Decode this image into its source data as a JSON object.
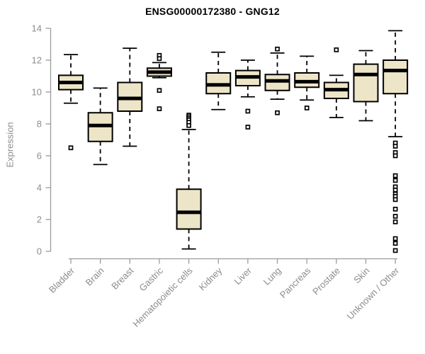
{
  "colors": {
    "box_fill": "#EDE5C7",
    "box_stroke": "#000000",
    "median": "#000000",
    "axis_line": "#9B9B9B",
    "axis_text": "#8C8C8C",
    "title_text": "#000000",
    "outlier_fill": "#FFFFFF",
    "background": "#FFFFFF"
  },
  "chart_data": {
    "type": "boxplot",
    "title": "ENSG00000172380 - GNG12",
    "xlabel": "",
    "ylabel": "Expression",
    "ylim": [
      0,
      14
    ],
    "yticks": [
      0,
      2,
      4,
      6,
      8,
      10,
      12,
      14
    ],
    "grid": false,
    "legend": false,
    "categories": [
      "Bladder",
      "Brain",
      "Breast",
      "Gastric",
      "Hematopoietic cells",
      "Kidney",
      "Liver",
      "Lung",
      "Pancreas",
      "Prostate",
      "Skin",
      "Unknown / Other"
    ],
    "series": [
      {
        "name": "Bladder",
        "whisker_low": 9.3,
        "q1": 10.15,
        "median": 10.6,
        "q3": 11.05,
        "whisker_high": 12.35,
        "outliers": [
          6.5
        ]
      },
      {
        "name": "Brain",
        "whisker_low": 5.45,
        "q1": 6.9,
        "median": 7.9,
        "q3": 8.7,
        "whisker_high": 10.25,
        "outliers": []
      },
      {
        "name": "Breast",
        "whisker_low": 6.6,
        "q1": 8.8,
        "median": 9.6,
        "q3": 10.6,
        "whisker_high": 12.75,
        "outliers": []
      },
      {
        "name": "Gastric",
        "whisker_low": 10.9,
        "q1": 11.0,
        "median": 11.25,
        "q3": 11.5,
        "whisker_high": 11.85,
        "outliers": [
          12.3,
          12.1,
          10.1,
          8.95
        ]
      },
      {
        "name": "Hematopoietic cells",
        "whisker_low": 0.15,
        "q1": 1.4,
        "median": 2.45,
        "q3": 3.9,
        "whisker_high": 7.65,
        "outliers": [
          8.55,
          8.45,
          8.35,
          8.25,
          8.1,
          7.9
        ]
      },
      {
        "name": "Kidney",
        "whisker_low": 8.9,
        "q1": 9.9,
        "median": 10.45,
        "q3": 11.2,
        "whisker_high": 12.5,
        "outliers": []
      },
      {
        "name": "Liver",
        "whisker_low": 9.7,
        "q1": 10.4,
        "median": 10.95,
        "q3": 11.35,
        "whisker_high": 12.0,
        "outliers": [
          8.8,
          7.8
        ]
      },
      {
        "name": "Lung",
        "whisker_low": 9.55,
        "q1": 10.1,
        "median": 10.7,
        "q3": 11.1,
        "whisker_high": 12.45,
        "outliers": [
          12.7,
          8.7
        ]
      },
      {
        "name": "Pancreas",
        "whisker_low": 9.5,
        "q1": 10.3,
        "median": 10.65,
        "q3": 11.2,
        "whisker_high": 12.25,
        "outliers": [
          9.0
        ]
      },
      {
        "name": "Prostate",
        "whisker_low": 8.4,
        "q1": 9.6,
        "median": 10.15,
        "q3": 10.6,
        "whisker_high": 11.05,
        "outliers": [
          12.65
        ]
      },
      {
        "name": "Skin",
        "whisker_low": 8.2,
        "q1": 9.4,
        "median": 11.1,
        "q3": 11.75,
        "whisker_high": 12.6,
        "outliers": []
      },
      {
        "name": "Unknown / Other",
        "whisker_low": 7.2,
        "q1": 9.9,
        "median": 11.35,
        "q3": 12.0,
        "whisker_high": 13.85,
        "outliers": [
          6.8,
          6.6,
          6.2,
          6.0,
          4.75,
          4.45,
          4.05,
          3.85,
          3.6,
          3.45,
          3.25,
          2.65,
          2.2,
          1.85,
          0.8,
          0.5,
          0.05
        ]
      }
    ]
  }
}
